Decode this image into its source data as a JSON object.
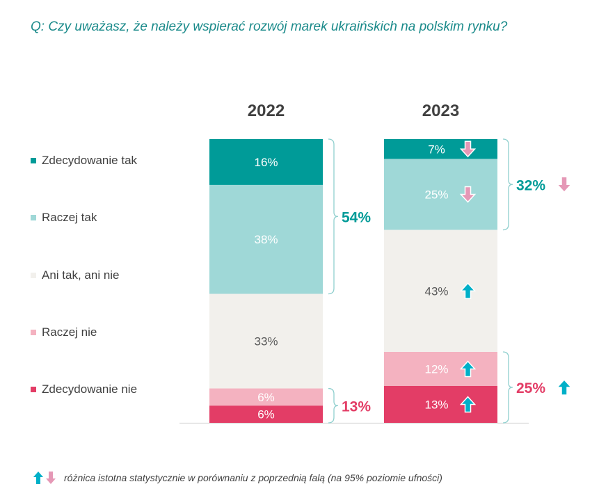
{
  "question": "Q: Czy uważasz, że należy wspierać rozwój marek ukraińskich na polskim rynku?",
  "footnote": "różnica istotna statystycznie w porównaniu z poprzednią falą (na 95% poziomie ufności)",
  "colors": {
    "zdecydowanie_tak": "#009b98",
    "raczej_tak": "#9fd8d7",
    "ani": "#f2f0ec",
    "raczej_nie": "#f4b2c0",
    "zdecydowanie_nie": "#e33d66",
    "up_arrow": "#00b0c8",
    "down_arrow": "#e598b6",
    "net_positive": "#009b98",
    "net_negative": "#e33d66"
  },
  "chart_data": {
    "type": "bar",
    "stacked": true,
    "categories": [
      "2022",
      "2023"
    ],
    "series": [
      {
        "name": "Zdecydowanie tak",
        "values": [
          16,
          7
        ],
        "labels": [
          "16%",
          "7%"
        ],
        "change": [
          null,
          "down"
        ]
      },
      {
        "name": "Raczej tak",
        "values": [
          38,
          25
        ],
        "labels": [
          "38%",
          "25%"
        ],
        "change": [
          null,
          "down"
        ]
      },
      {
        "name": "Ani tak, ani nie",
        "values": [
          33,
          43
        ],
        "labels": [
          "33%",
          "43%"
        ],
        "change": [
          null,
          "up"
        ]
      },
      {
        "name": "Raczej nie",
        "values": [
          6,
          12
        ],
        "labels": [
          "6%",
          "12%"
        ],
        "change": [
          null,
          "up"
        ]
      },
      {
        "name": "Zdecydowanie nie",
        "values": [
          6,
          13
        ],
        "labels": [
          "6%",
          "13%"
        ],
        "change": [
          null,
          "up"
        ]
      }
    ],
    "net_positive": {
      "labels": [
        "54%",
        "32%"
      ],
      "change": [
        null,
        "down"
      ]
    },
    "net_negative": {
      "labels": [
        "13%",
        "25%"
      ],
      "change": [
        null,
        "up"
      ]
    },
    "legend_position": "left"
  }
}
